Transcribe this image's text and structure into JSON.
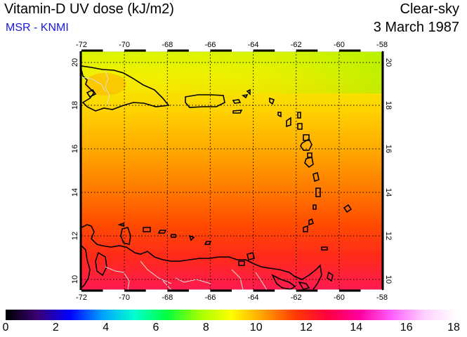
{
  "header": {
    "title": "Vitamin-D UV dose (kJ/m2)",
    "source": "MSR - KNMI",
    "condition": "Clear-sky",
    "date": "3 March 1987"
  },
  "map": {
    "lon_range": [
      -72,
      -58
    ],
    "lat_range": [
      9.5,
      20.5
    ],
    "lon_ticks": [
      "-72",
      "-70",
      "-68",
      "-66",
      "-64",
      "-62",
      "-60",
      "-58"
    ],
    "lat_ticks": [
      "10",
      "12",
      "14",
      "16",
      "18",
      "20"
    ],
    "grid": "dotted",
    "region_shown": "Caribbean: Hispaniola, Puerto Rico, Lesser Antilles, Venezuela coast"
  },
  "colorbar": {
    "min": 0,
    "max": 18,
    "labels": [
      "0",
      "2",
      "4",
      "6",
      "8",
      "10",
      "12",
      "14",
      "16",
      "18"
    ],
    "colors": [
      "#000000",
      "#3a0077",
      "#0000ff",
      "#00a0ff",
      "#00ffd0",
      "#00ff40",
      "#a0ff00",
      "#ffff00",
      "#ffa000",
      "#ff3a00",
      "#ff0040",
      "#ff00a0",
      "#ff60ff",
      "#ffd0ff",
      "#ffffff"
    ]
  }
}
